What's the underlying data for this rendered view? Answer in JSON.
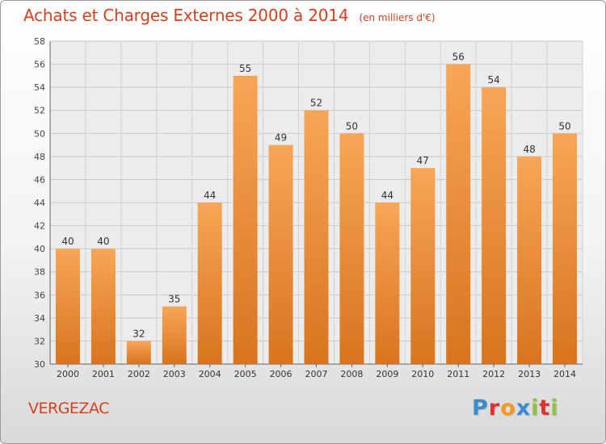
{
  "header": {
    "title": "Achats et Charges Externes 2000 à 2014",
    "unit": "(en milliers d'€)"
  },
  "footer": {
    "town": "VERGEZAC",
    "logo_text": "Proxiti",
    "logo_letters": [
      {
        "char": "P",
        "color": "#3a8ccf"
      },
      {
        "char": "r",
        "color": "#e0312d"
      },
      {
        "char": "o",
        "color": "#f39a1e"
      },
      {
        "char": "x",
        "color": "#3a8ccf"
      },
      {
        "char": "i",
        "color": "#8cc43f"
      },
      {
        "char": "t",
        "color": "#e0312d"
      },
      {
        "char": "i",
        "color": "#8cc43f"
      }
    ]
  },
  "chart_data": {
    "type": "bar",
    "categories": [
      "2000",
      "2001",
      "2002",
      "2003",
      "2004",
      "2005",
      "2006",
      "2007",
      "2008",
      "2009",
      "2010",
      "2011",
      "2012",
      "2013",
      "2014"
    ],
    "values": [
      40,
      40,
      32,
      35,
      44,
      55,
      49,
      52,
      50,
      44,
      47,
      56,
      54,
      48,
      50
    ],
    "ylim": [
      30,
      58
    ],
    "yticks": [
      30,
      32,
      34,
      36,
      38,
      40,
      42,
      44,
      46,
      48,
      50,
      52,
      54,
      56,
      58
    ],
    "grid": true,
    "bar_color_top": "#f7a657",
    "bar_color_bottom": "#d8741f"
  }
}
